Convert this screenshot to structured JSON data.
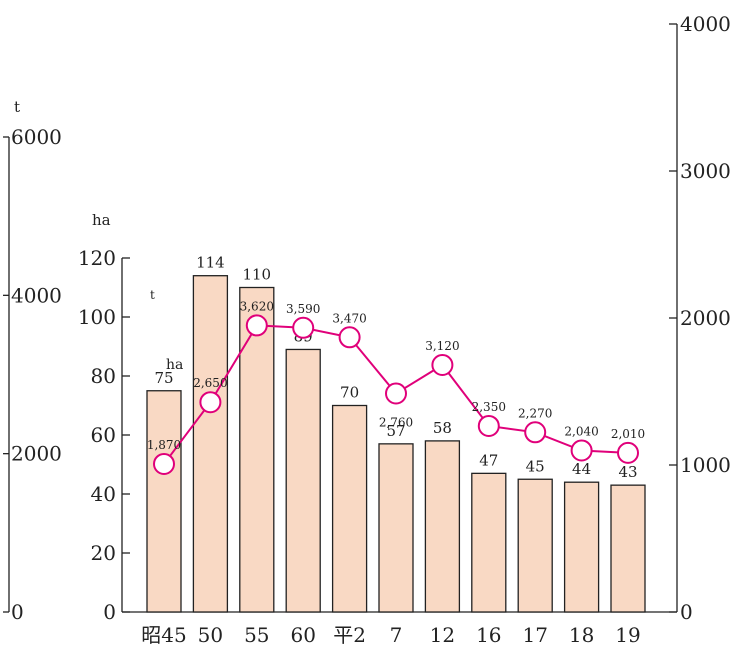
{
  "chart_data": {
    "type": "bar",
    "categories": [
      "昭45",
      "50",
      "55",
      "60",
      "平2",
      "7",
      "12",
      "16",
      "17",
      "18",
      "19"
    ],
    "series": [
      {
        "type": "bar",
        "values": [
          75,
          114,
          110,
          89,
          70,
          57,
          58,
          47,
          45,
          44,
          43
        ],
        "labels": [
          "75",
          "114",
          "110",
          "89",
          "70",
          "57",
          "58",
          "47",
          "45",
          "44",
          "43"
        ],
        "color": "#f9d9c4"
      },
      {
        "type": "line",
        "values": [
          1870,
          2650,
          3620,
          3590,
          3470,
          2760,
          3120,
          2350,
          2270,
          2040,
          2010
        ],
        "labels": [
          "1,870",
          "2,650",
          "3,620",
          "3,590",
          "3,470",
          "2,760",
          "3,120",
          "2,350",
          "2,270",
          "2,040",
          "2,010"
        ],
        "color": "#e0007a"
      }
    ],
    "axes": {
      "left_inner": {
        "unit": "ha",
        "ylim": [
          0,
          120
        ],
        "ticks": [
          "0",
          "20",
          "40",
          "60",
          "80",
          "100",
          "120"
        ]
      },
      "left_outer": {
        "unit": "t",
        "ylim": [
          0,
          6000
        ],
        "ticks": [
          "0",
          "2000",
          "4000",
          "6000"
        ]
      },
      "right": {
        "ylim": [
          0,
          4000
        ],
        "ticks": [
          "0",
          "1000",
          "2000",
          "3000",
          "4000"
        ]
      }
    },
    "first_point_units": {
      "line": "t",
      "bar": "ha"
    }
  }
}
